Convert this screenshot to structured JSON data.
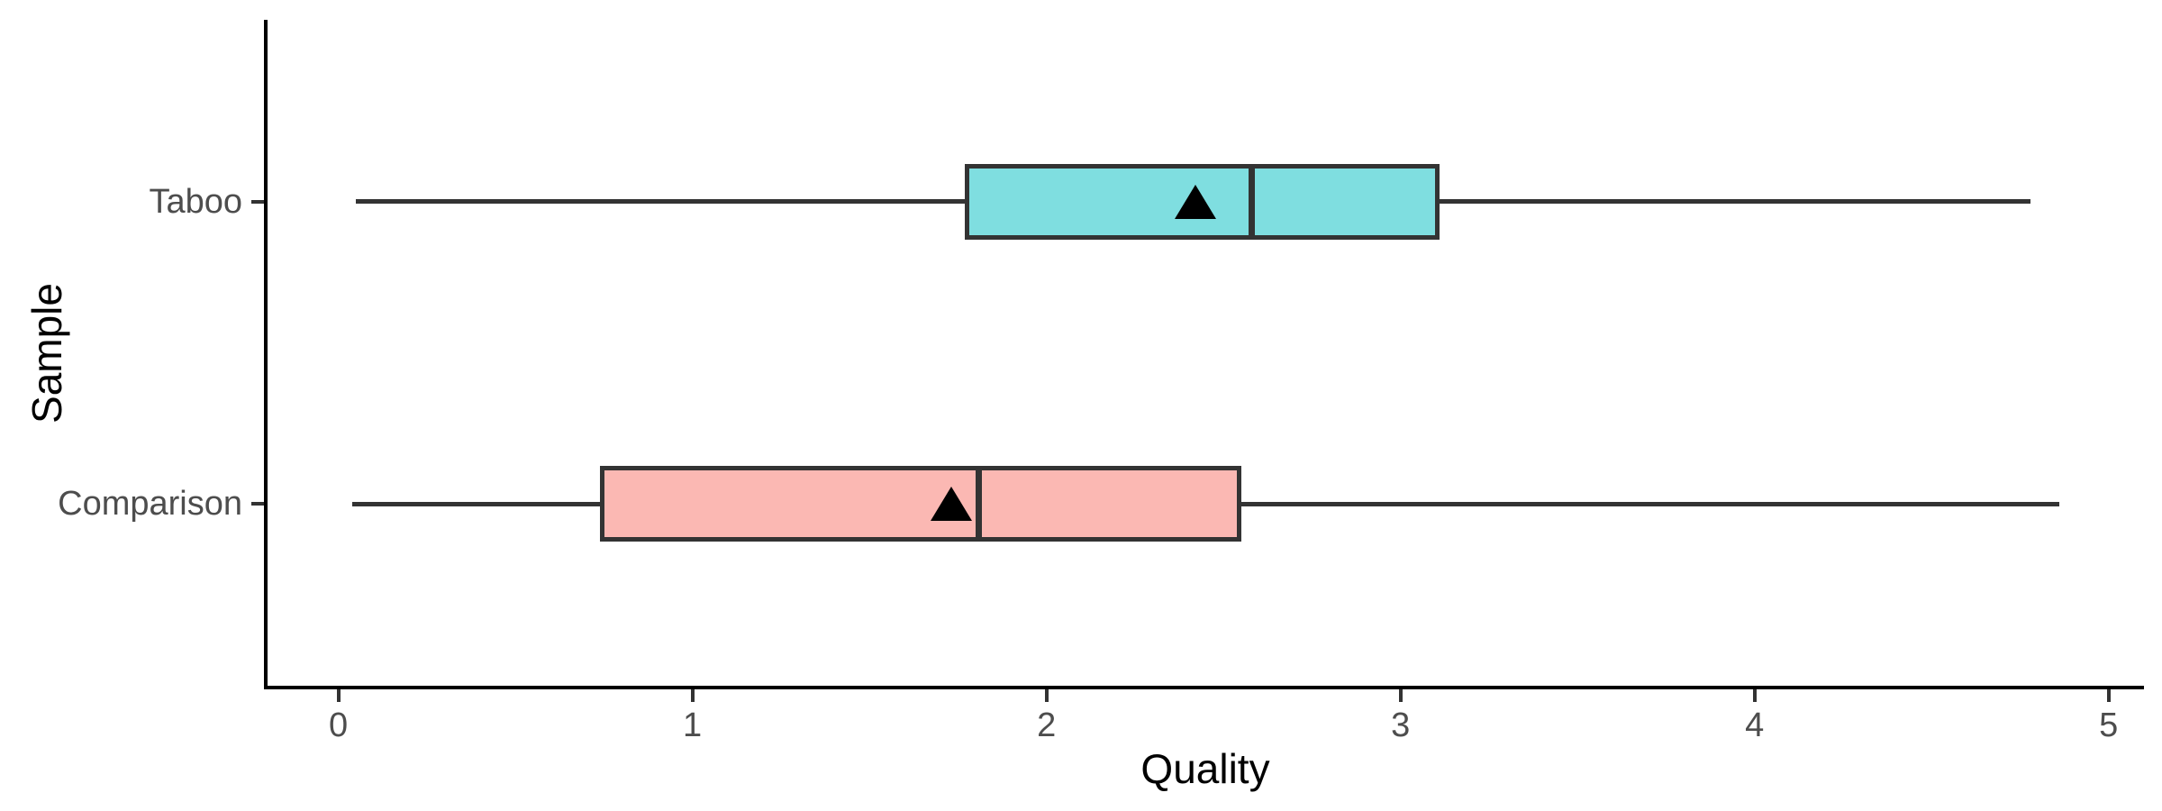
{
  "chart_data": {
    "type": "boxplot",
    "orientation": "horizontal",
    "title": "",
    "xlabel": "Quality",
    "ylabel": "Sample",
    "xlim": [
      -0.2,
      5.1
    ],
    "x_ticks": [
      "0",
      "1",
      "2",
      "3",
      "4",
      "5"
    ],
    "x_tick_values": [
      0,
      1,
      2,
      3,
      4,
      5
    ],
    "categories": [
      "Taboo",
      "Comparison"
    ],
    "grid": "off",
    "legend": "none",
    "series": [
      {
        "label": "Taboo",
        "whisker_min": 0.05,
        "q1": 1.77,
        "median": 2.58,
        "q3": 3.11,
        "whisker_max": 4.78,
        "mean": 2.42,
        "mean_marker": "triangle",
        "fill_color": "#7FDEE0"
      },
      {
        "label": "Comparison",
        "whisker_min": 0.04,
        "q1": 0.74,
        "median": 1.81,
        "q3": 2.55,
        "whisker_max": 4.86,
        "mean": 1.73,
        "mean_marker": "triangle",
        "fill_color": "#FBB8B3"
      }
    ],
    "colors": {
      "box_border": "#333333",
      "whisker": "#333333",
      "median": "#333333",
      "mean_marker": "#000000",
      "axis_line": "#000000",
      "tick_label": "#4D4D4D",
      "axis_title": "#000000",
      "background": "#FFFFFF"
    }
  }
}
